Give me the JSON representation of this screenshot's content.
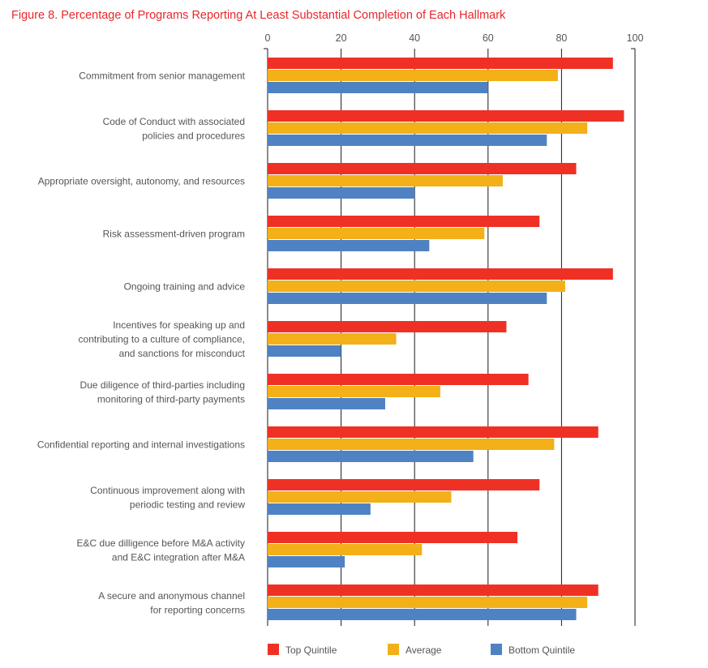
{
  "chart_data": {
    "type": "bar",
    "orientation": "horizontal",
    "title": "Figure 8. Percentage of Programs Reporting At Least Substantial Completion of Each Hallmark",
    "xlim": [
      0,
      100
    ],
    "xticks": [
      "0",
      "20",
      "40",
      "60",
      "80",
      "100"
    ],
    "grid": true,
    "legend_position": "bottom",
    "categories": [
      [
        "Commitment from senior management"
      ],
      [
        "Code of Conduct with associated",
        "policies and procedures"
      ],
      [
        "Appropriate oversight, autonomy, and resources"
      ],
      [
        "Risk assessment-driven program"
      ],
      [
        "Ongoing training and advice"
      ],
      [
        "Incentives for speaking up and",
        "contributing to a culture of compliance,",
        "and sanctions for misconduct"
      ],
      [
        "Due diligence of third-parties including",
        "monitoring of third-party payments"
      ],
      [
        "Confidential reporting and internal investigations"
      ],
      [
        "Continuous improvement along with",
        "periodic testing and review"
      ],
      [
        "E&C due dilligence before M&A activity",
        "and E&C integration after M&A"
      ],
      [
        "A secure and anonymous channel",
        "for reporting concerns"
      ]
    ],
    "series": [
      {
        "name": "Top Quintile",
        "color": "#ef3125",
        "values": [
          94,
          97,
          84,
          74,
          94,
          65,
          71,
          90,
          74,
          68,
          90
        ]
      },
      {
        "name": "Average",
        "color": "#f3b018",
        "values": [
          79,
          87,
          64,
          59,
          81,
          35,
          47,
          78,
          50,
          42,
          87
        ]
      },
      {
        "name": "Bottom Quintile",
        "color": "#4f82c3",
        "values": [
          60,
          76,
          40,
          44,
          76,
          20,
          32,
          56,
          28,
          21,
          84
        ]
      }
    ]
  },
  "colors": {
    "title": "#e8262b",
    "grid": "#1a1a1a",
    "text": "#555555"
  }
}
